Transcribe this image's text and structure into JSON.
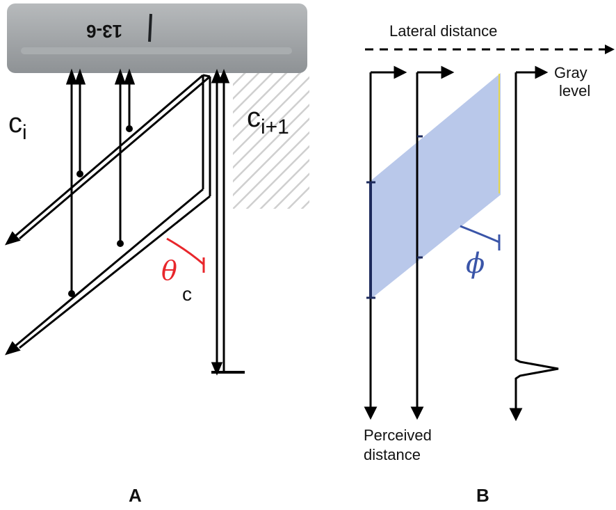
{
  "panel_a": {
    "label": "A",
    "probe_text": "13-6",
    "channel_left": "c",
    "channel_left_sub": "i",
    "channel_right": "c",
    "channel_right_sub": "i+1",
    "angle_symbol": "θ",
    "angle_sub": "c",
    "colors": {
      "probe": "#9fa3a6",
      "angle": "#e8262b",
      "hatch": "#c9c9c9"
    }
  },
  "panel_b": {
    "label": "B",
    "lateral_label": "Lateral distance",
    "gray_label_line1": "Gray",
    "gray_label_line2": "level",
    "perceived_line1": "Perceived",
    "perceived_line2": "distance",
    "angle_symbol": "ϕ",
    "colors": {
      "band": "#b9c8ea",
      "angle": "#3a55a8",
      "edge": "#e8d84a"
    }
  }
}
